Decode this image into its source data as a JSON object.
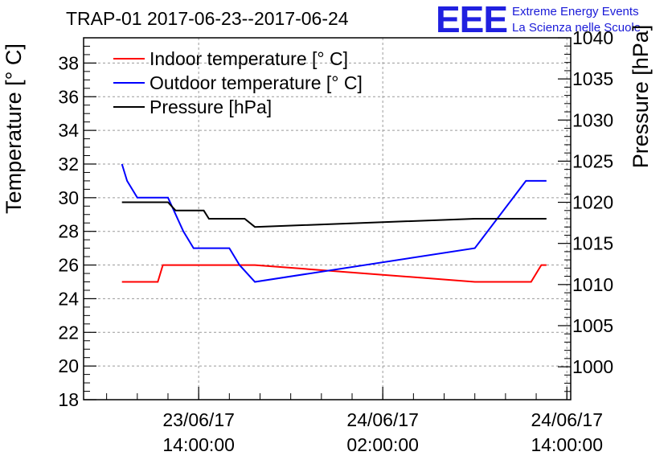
{
  "header": {
    "title": "TRAP-01 2017-06-23--2017-06-24",
    "logo_text": "EEE",
    "logo_line1": "Extreme Energy Events",
    "logo_line2": "La Scienza nelle Scuole"
  },
  "chart_data": {
    "type": "line",
    "title": "TRAP-01 2017-06-23--2017-06-24",
    "x_ticks": [
      {
        "date": "23/06/17",
        "time": "14:00:00"
      },
      {
        "date": "24/06/17",
        "time": "02:00:00"
      },
      {
        "date": "24/06/17",
        "time": "14:00:00"
      }
    ],
    "xlim": [
      "2017-06-23 06:30",
      "2017-06-24 14:15"
    ],
    "ylabel_left": "Temperature [° C]",
    "ylabel_right": "Pressure [hPa]",
    "ylim_left": [
      18,
      39.5
    ],
    "ylim_right": [
      996,
      1040
    ],
    "y_ticks_left": [
      18,
      20,
      22,
      24,
      26,
      28,
      30,
      32,
      34,
      36,
      38
    ],
    "y_ticks_right": [
      1000,
      1005,
      1010,
      1015,
      1020,
      1025,
      1030,
      1035,
      1040
    ],
    "grid": true,
    "legend_position": "top-left",
    "series": [
      {
        "name": "Indoor temperature [° C]",
        "color": "#ff0000",
        "axis": "left",
        "points": [
          [
            "2017-06-23 09:00",
            25.0
          ],
          [
            "2017-06-23 11:20",
            25.0
          ],
          [
            "2017-06-23 11:40",
            26.0
          ],
          [
            "2017-06-23 17:40",
            26.0
          ],
          [
            "2017-06-24 08:00",
            25.0
          ],
          [
            "2017-06-24 11:40",
            25.0
          ],
          [
            "2017-06-24 12:20",
            26.0
          ],
          [
            "2017-06-24 12:40",
            26.0
          ]
        ]
      },
      {
        "name": "Outdoor temperature [° C]",
        "color": "#0000ff",
        "axis": "left",
        "points": [
          [
            "2017-06-23 09:00",
            32.0
          ],
          [
            "2017-06-23 09:20",
            31.0
          ],
          [
            "2017-06-23 10:00",
            30.0
          ],
          [
            "2017-06-23 12:00",
            30.0
          ],
          [
            "2017-06-23 13:00",
            28.0
          ],
          [
            "2017-06-23 13:40",
            27.0
          ],
          [
            "2017-06-23 16:00",
            27.0
          ],
          [
            "2017-06-23 16:40",
            26.0
          ],
          [
            "2017-06-23 17:40",
            25.0
          ],
          [
            "2017-06-24 08:00",
            27.0
          ],
          [
            "2017-06-24 11:20",
            31.0
          ],
          [
            "2017-06-24 12:40",
            31.0
          ]
        ]
      },
      {
        "name": "Pressure [hPa]",
        "color": "#000000",
        "axis": "right",
        "points": [
          [
            "2017-06-23 09:00",
            1020.0
          ],
          [
            "2017-06-23 12:00",
            1020.0
          ],
          [
            "2017-06-23 12:30",
            1019.0
          ],
          [
            "2017-06-23 14:20",
            1019.0
          ],
          [
            "2017-06-23 14:40",
            1018.0
          ],
          [
            "2017-06-23 17:00",
            1018.0
          ],
          [
            "2017-06-23 17:40",
            1017.0
          ],
          [
            "2017-06-24 08:00",
            1018.0
          ],
          [
            "2017-06-24 12:40",
            1018.0
          ]
        ]
      }
    ]
  }
}
